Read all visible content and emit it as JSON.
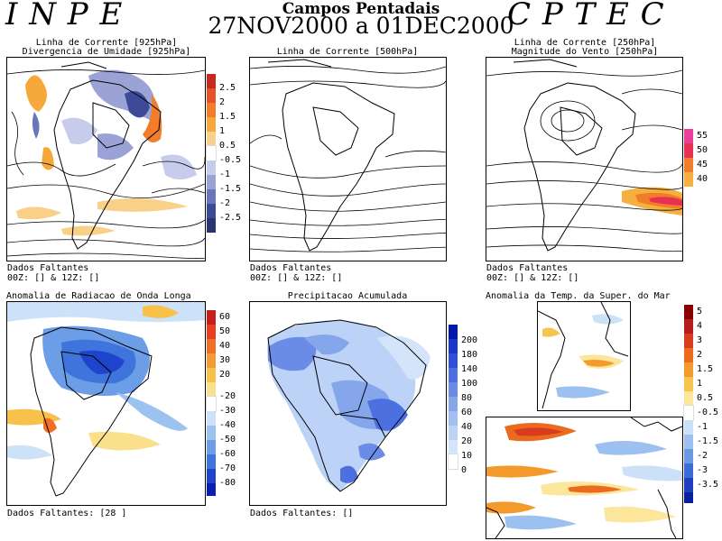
{
  "header": {
    "logo_left": "I N P E",
    "logo_right": "C P T E C",
    "title": "Campos Pentadais",
    "period": "27NOV2000 a 01DEC2000"
  },
  "panels": {
    "p1": {
      "title1": "Linha de Corrente [925hPa]",
      "title2": "Divergencia de Umidade [925hPa]",
      "note1": "Dados Faltantes",
      "note2": "00Z: [] & 12Z: []"
    },
    "p2": {
      "title1": "Linha de Corrente [500hPa]",
      "note1": "Dados Faltantes",
      "note2": "00Z: [] & 12Z: []"
    },
    "p3": {
      "title1": "Linha de Corrente [250hPa]",
      "title2": "Magnitude do Vento [250hPa]",
      "note1": "Dados Faltantes",
      "note2": "00Z: [] & 12Z: []"
    },
    "p4": {
      "title1": "Anomalia de Radiacao de Onda Longa",
      "note1": "Dados Faltantes: [28 ]"
    },
    "p5": {
      "title1": "Precipitacao Acumulada",
      "note1": "Dados Faltantes: []"
    },
    "p6": {
      "title1": "Anomalia da Temp. da Super. do Mar"
    }
  },
  "colorbars": {
    "div": {
      "labels": [
        "2.5",
        "2",
        "1.5",
        "1",
        "0.5",
        "-0.5",
        "-1",
        "-1.5",
        "-2",
        "-2.5"
      ],
      "colors": [
        "#c8281e",
        "#e8502a",
        "#f07c2c",
        "#f6a83a",
        "#f8d088",
        "#ffffff",
        "#c8ccec",
        "#9aa2d6",
        "#6a76bc",
        "#3c4a98",
        "#2a3470"
      ]
    },
    "wind": {
      "labels": [
        "55",
        "50",
        "45",
        "40"
      ],
      "colors": [
        "#e8409a",
        "#e83050",
        "#f07c2c",
        "#f6b040"
      ]
    },
    "olr": {
      "labels": [
        "60",
        "50",
        "40",
        "30",
        "20",
        "-20",
        "-30",
        "-40",
        "-50",
        "-60",
        "-70",
        "-80"
      ],
      "colors": [
        "#c81e1e",
        "#e8401e",
        "#f07028",
        "#f49a34",
        "#f8c24a",
        "#fae08a",
        "#ffffff",
        "#cce2f8",
        "#9cc2f0",
        "#6c9ee8",
        "#3e74dc",
        "#1e44cc",
        "#0a1eb4"
      ]
    },
    "prec": {
      "labels": [
        "200",
        "180",
        "140",
        "100",
        "80",
        "60",
        "40",
        "20",
        "10",
        "0"
      ],
      "colors": [
        "#0018b0",
        "#1838c8",
        "#3050d8",
        "#4c70e0",
        "#6a8ce6",
        "#86a6ec",
        "#a2bef2",
        "#bcd2f6",
        "#d4e4fa",
        "#ffffff"
      ]
    },
    "sst": {
      "labels": [
        "5",
        "4",
        "3",
        "2",
        "1.5",
        "1",
        "0.5",
        "-0.5",
        "-1",
        "-1.5",
        "-2",
        "-3",
        "-3.5"
      ],
      "colors": [
        "#8a0000",
        "#b81c1c",
        "#d83c1e",
        "#ec6a1e",
        "#f49a2c",
        "#f8c450",
        "#fce69c",
        "#ffffff",
        "#cce0f8",
        "#9cc0f0",
        "#6c98e4",
        "#3c6cd8",
        "#1e40c0",
        "#0a1ea0"
      ]
    }
  }
}
